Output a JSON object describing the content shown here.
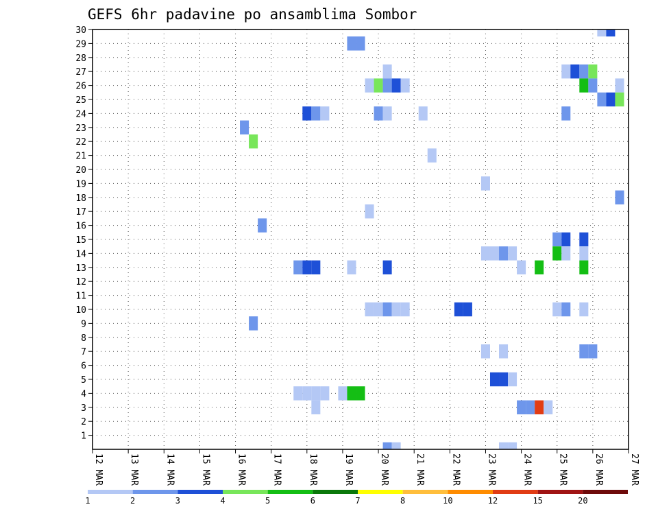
{
  "chart_data": {
    "type": "heatmap",
    "title": "GEFS 6hr padavine po ansamblima Sombor",
    "x_tick_labels": [
      "12 MAR",
      "13 MAR",
      "14 MAR",
      "15 MAR",
      "16 MAR",
      "17 MAR",
      "18 MAR",
      "19 MAR",
      "20 MAR",
      "21 MAR",
      "22 MAR",
      "23 MAR",
      "24 MAR",
      "25 MAR",
      "26 MAR",
      "27 MAR"
    ],
    "x_range_days": [
      12,
      27
    ],
    "y_range": [
      0,
      30
    ],
    "y_ticks": [
      1,
      2,
      3,
      4,
      5,
      6,
      7,
      8,
      9,
      10,
      11,
      12,
      13,
      14,
      15,
      16,
      17,
      18,
      19,
      20,
      21,
      22,
      23,
      24,
      25,
      26,
      27,
      28,
      29,
      30
    ],
    "grid": "dotted",
    "color_scale": {
      "colors": [
        "#b4c8f5",
        "#6e96eb",
        "#1e50d7",
        "#78e65a",
        "#14be14",
        "#0a780a",
        "#ffff00",
        "#ffbe3c",
        "#ff8c00",
        "#e13c14",
        "#a01414",
        "#6e0a0a"
      ],
      "labels": [
        "1",
        "2",
        "3",
        "4",
        "5",
        "6",
        "7",
        "8",
        "10",
        "12",
        "15",
        "20"
      ]
    },
    "cells": [
      {
        "day": 26.25,
        "member": 30,
        "color": "#b4c8f5"
      },
      {
        "day": 26.5,
        "member": 30,
        "color": "#1e50d7"
      },
      {
        "day": 19.25,
        "member": 29,
        "color": "#6e96eb"
      },
      {
        "day": 19.5,
        "member": 29,
        "color": "#6e96eb"
      },
      {
        "day": 20.25,
        "member": 27,
        "color": "#b4c8f5"
      },
      {
        "day": 25.25,
        "member": 27,
        "color": "#b4c8f5"
      },
      {
        "day": 25.5,
        "member": 27,
        "color": "#1e50d7"
      },
      {
        "day": 25.75,
        "member": 27,
        "color": "#6e96eb"
      },
      {
        "day": 26.0,
        "member": 27,
        "color": "#78e65a"
      },
      {
        "day": 19.75,
        "member": 26,
        "color": "#b4c8f5"
      },
      {
        "day": 20.0,
        "member": 26,
        "color": "#78e65a"
      },
      {
        "day": 20.25,
        "member": 26,
        "color": "#6e96eb"
      },
      {
        "day": 20.5,
        "member": 26,
        "color": "#1e50d7"
      },
      {
        "day": 20.75,
        "member": 26,
        "color": "#b4c8f5"
      },
      {
        "day": 25.75,
        "member": 26,
        "color": "#14be14"
      },
      {
        "day": 26.0,
        "member": 26,
        "color": "#6e96eb"
      },
      {
        "day": 26.75,
        "member": 26,
        "color": "#b4c8f5"
      },
      {
        "day": 26.25,
        "member": 25,
        "color": "#6e96eb"
      },
      {
        "day": 26.5,
        "member": 25,
        "color": "#1e50d7"
      },
      {
        "day": 26.75,
        "member": 25,
        "color": "#78e65a"
      },
      {
        "day": 18.0,
        "member": 24,
        "color": "#1e50d7"
      },
      {
        "day": 18.25,
        "member": 24,
        "color": "#6e96eb"
      },
      {
        "day": 18.5,
        "member": 24,
        "color": "#b4c8f5"
      },
      {
        "day": 20.0,
        "member": 24,
        "color": "#6e96eb"
      },
      {
        "day": 20.25,
        "member": 24,
        "color": "#b4c8f5"
      },
      {
        "day": 21.25,
        "member": 24,
        "color": "#b4c8f5"
      },
      {
        "day": 25.25,
        "member": 24,
        "color": "#6e96eb"
      },
      {
        "day": 16.25,
        "member": 23,
        "color": "#6e96eb"
      },
      {
        "day": 16.5,
        "member": 22,
        "color": "#78e65a"
      },
      {
        "day": 21.5,
        "member": 21,
        "color": "#b4c8f5"
      },
      {
        "day": 23.0,
        "member": 19,
        "color": "#b4c8f5"
      },
      {
        "day": 26.75,
        "member": 18,
        "color": "#6e96eb"
      },
      {
        "day": 19.75,
        "member": 17,
        "color": "#b4c8f5"
      },
      {
        "day": 16.75,
        "member": 16,
        "color": "#6e96eb"
      },
      {
        "day": 25.0,
        "member": 15,
        "color": "#6e96eb"
      },
      {
        "day": 25.25,
        "member": 15,
        "color": "#1e50d7"
      },
      {
        "day": 25.75,
        "member": 15,
        "color": "#1e50d7"
      },
      {
        "day": 25.0,
        "member": 14,
        "color": "#14be14"
      },
      {
        "day": 25.25,
        "member": 14,
        "color": "#b4c8f5"
      },
      {
        "day": 25.75,
        "member": 14,
        "color": "#b4c8f5"
      },
      {
        "day": 23.0,
        "member": 14,
        "color": "#b4c8f5"
      },
      {
        "day": 23.25,
        "member": 14,
        "color": "#b4c8f5"
      },
      {
        "day": 23.5,
        "member": 14,
        "color": "#6e96eb"
      },
      {
        "day": 23.75,
        "member": 14,
        "color": "#b4c8f5"
      },
      {
        "day": 17.75,
        "member": 13,
        "color": "#6e96eb"
      },
      {
        "day": 18.0,
        "member": 13,
        "color": "#1e50d7"
      },
      {
        "day": 18.25,
        "member": 13,
        "color": "#1e50d7"
      },
      {
        "day": 19.25,
        "member": 13,
        "color": "#b4c8f5"
      },
      {
        "day": 20.25,
        "member": 13,
        "color": "#1e50d7"
      },
      {
        "day": 24.0,
        "member": 13,
        "color": "#b4c8f5"
      },
      {
        "day": 24.5,
        "member": 13,
        "color": "#14be14"
      },
      {
        "day": 25.75,
        "member": 13,
        "color": "#14be14"
      },
      {
        "day": 19.75,
        "member": 10,
        "color": "#b4c8f5"
      },
      {
        "day": 20.0,
        "member": 10,
        "color": "#b4c8f5"
      },
      {
        "day": 20.25,
        "member": 10,
        "color": "#6e96eb"
      },
      {
        "day": 20.5,
        "member": 10,
        "color": "#b4c8f5"
      },
      {
        "day": 20.75,
        "member": 10,
        "color": "#b4c8f5"
      },
      {
        "day": 22.25,
        "member": 10,
        "color": "#1e50d7"
      },
      {
        "day": 22.5,
        "member": 10,
        "color": "#1e50d7"
      },
      {
        "day": 25.0,
        "member": 10,
        "color": "#b4c8f5"
      },
      {
        "day": 25.25,
        "member": 10,
        "color": "#6e96eb"
      },
      {
        "day": 25.75,
        "member": 10,
        "color": "#b4c8f5"
      },
      {
        "day": 16.5,
        "member": 9,
        "color": "#6e96eb"
      },
      {
        "day": 23.0,
        "member": 7,
        "color": "#b4c8f5"
      },
      {
        "day": 23.5,
        "member": 7,
        "color": "#b4c8f5"
      },
      {
        "day": 25.75,
        "member": 7,
        "color": "#6e96eb"
      },
      {
        "day": 26.0,
        "member": 7,
        "color": "#6e96eb"
      },
      {
        "day": 23.25,
        "member": 5,
        "color": "#1e50d7"
      },
      {
        "day": 23.5,
        "member": 5,
        "color": "#1e50d7"
      },
      {
        "day": 23.75,
        "member": 5,
        "color": "#b4c8f5"
      },
      {
        "day": 17.75,
        "member": 4,
        "color": "#b4c8f5"
      },
      {
        "day": 18.0,
        "member": 4,
        "color": "#b4c8f5"
      },
      {
        "day": 18.25,
        "member": 4,
        "color": "#b4c8f5"
      },
      {
        "day": 18.5,
        "member": 4,
        "color": "#b4c8f5"
      },
      {
        "day": 19.0,
        "member": 4,
        "color": "#b4c8f5"
      },
      {
        "day": 19.25,
        "member": 4,
        "color": "#14be14"
      },
      {
        "day": 19.5,
        "member": 4,
        "color": "#14be14"
      },
      {
        "day": 18.25,
        "member": 3,
        "color": "#b4c8f5"
      },
      {
        "day": 24.0,
        "member": 3,
        "color": "#6e96eb"
      },
      {
        "day": 24.25,
        "member": 3,
        "color": "#6e96eb"
      },
      {
        "day": 24.5,
        "member": 3,
        "color": "#e13c14"
      },
      {
        "day": 24.75,
        "member": 3,
        "color": "#b4c8f5"
      },
      {
        "day": 20.25,
        "member": 0,
        "color": "#6e96eb"
      },
      {
        "day": 20.5,
        "member": 0,
        "color": "#b4c8f5"
      },
      {
        "day": 23.5,
        "member": 0,
        "color": "#b4c8f5"
      },
      {
        "day": 23.75,
        "member": 0,
        "color": "#b4c8f5"
      }
    ]
  }
}
